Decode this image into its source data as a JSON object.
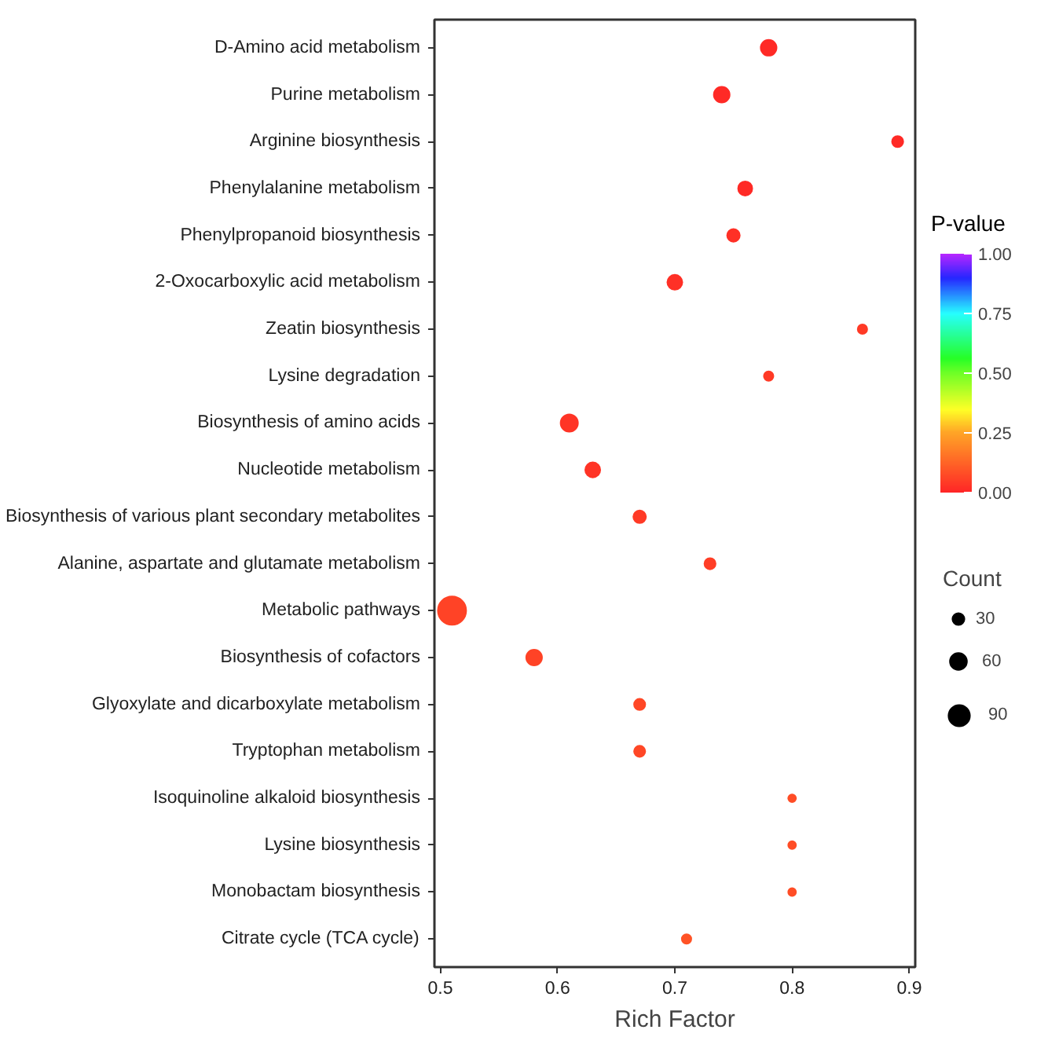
{
  "chart_data": {
    "type": "bubble",
    "orientation": "horizontal",
    "xlabel": "Rich Factor",
    "clabel": "P-value",
    "legend_title": "Count",
    "grid": false,
    "categories": [
      "D-Amino acid metabolism",
      "Purine metabolism",
      "Arginine biosynthesis",
      "Phenylalanine metabolism",
      "Phenylpropanoid biosynthesis",
      "2-Oxocarboxylic acid metabolism",
      "Zeatin biosynthesis",
      "Lysine degradation",
      "Biosynthesis of amino acids",
      "Nucleotide metabolism",
      "Biosynthesis of various plant secondary metabolites",
      "Alanine, aspartate and glutamate metabolism",
      "Metabolic pathways",
      "Biosynthesis of cofactors",
      "Glyoxylate and dicarboxylate metabolism",
      "Tryptophan metabolism",
      "Isoquinoline alkaloid biosynthesis",
      "Lysine biosynthesis",
      "Monobactam biosynthesis",
      "Citrate cycle (TCA cycle)"
    ],
    "values": [
      0.78,
      0.74,
      0.89,
      0.76,
      0.75,
      0.7,
      0.86,
      0.78,
      0.61,
      0.63,
      0.67,
      0.73,
      0.51,
      0.58,
      0.67,
      0.67,
      0.8,
      0.8,
      0.8,
      0.71
    ],
    "sizes": [
      50,
      50,
      25,
      40,
      32,
      45,
      18,
      18,
      60,
      45,
      32,
      25,
      160,
      50,
      25,
      25,
      12,
      12,
      12,
      18
    ],
    "cvalues": [
      0.01,
      0.01,
      0.01,
      0.01,
      0.02,
      0.02,
      0.04,
      0.04,
      0.03,
      0.03,
      0.04,
      0.05,
      0.06,
      0.06,
      0.07,
      0.07,
      0.08,
      0.08,
      0.08,
      0.09
    ],
    "size_legend": [
      30,
      60,
      90
    ],
    "xlim": [
      0.495,
      0.905
    ],
    "xticks": [
      0.5,
      0.6,
      0.7,
      0.8,
      0.9
    ],
    "clim": [
      0,
      1
    ],
    "cticks": [
      {
        "value": 0,
        "label": "0.00"
      },
      {
        "value": 0.25,
        "label": "0.25"
      },
      {
        "value": 0.5,
        "label": "0.50"
      },
      {
        "value": 0.75,
        "label": "0.75"
      },
      {
        "value": 1,
        "label": "1.00"
      }
    ]
  }
}
